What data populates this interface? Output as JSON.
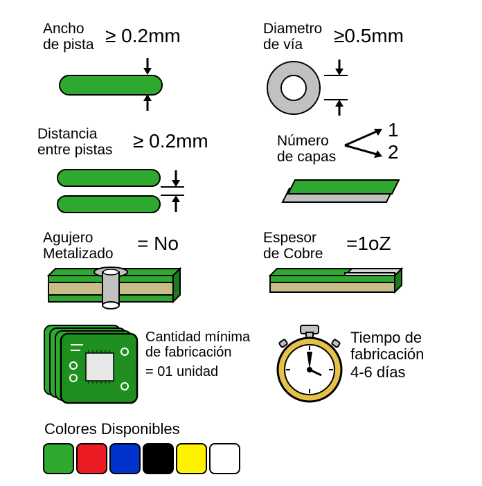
{
  "colors": {
    "pcb_green": "#2fa82f",
    "copper_tan": "#c8bd89",
    "via_gray": "#c1c1c1",
    "stopwatch_yellow": "#e6c14a",
    "swatches": [
      "#2fa82f",
      "#ed1c24",
      "#0033cc",
      "#000000",
      "#fff200",
      "#ffffff"
    ]
  },
  "specs": {
    "track_width": {
      "label1": "Ancho",
      "label2": "de pista",
      "op": "≥",
      "value": "0.2mm"
    },
    "via_diameter": {
      "label1": "Diametro",
      "label2": "de vía",
      "op": "≥",
      "value": "0.5mm"
    },
    "track_spacing": {
      "label1": "Distancia",
      "label2": "entre pistas",
      "op": "≥",
      "value": "0.2mm"
    },
    "layer_count": {
      "label1": "Número",
      "label2": "de capas",
      "v1": "1",
      "v2": "2"
    },
    "plated_hole": {
      "label1": "Agujero",
      "label2": "Metalizado",
      "op": "=",
      "value": "No"
    },
    "copper_weight": {
      "label1": "Espesor",
      "label2": "de Cobre",
      "op": "=",
      "value": "1oZ"
    },
    "moq": {
      "label1": "Cantidad mínima",
      "label2": "de fabricación",
      "value": "= 01 unidad"
    },
    "lead_time": {
      "label1": "Tiempo de",
      "label2": "fabricación",
      "value": "4-6 días"
    },
    "colors_title": "Colores Disponibles"
  }
}
